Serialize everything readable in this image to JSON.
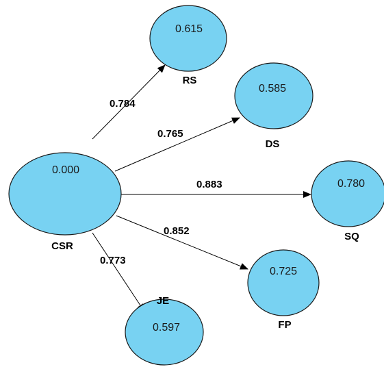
{
  "colors": {
    "node_fill": "#78d2f2",
    "node_stroke": "#1a1a1a",
    "edge": "#000000"
  },
  "nodes": {
    "csr": {
      "label": "CSR",
      "value": "0.000"
    },
    "rs": {
      "label": "RS",
      "value": "0.615"
    },
    "ds": {
      "label": "DS",
      "value": "0.585"
    },
    "sq": {
      "label": "SQ",
      "value": "0.780"
    },
    "fp": {
      "label": "FP",
      "value": "0.725"
    },
    "je": {
      "label": "JE",
      "value": "0.597"
    }
  },
  "edges": {
    "csr_rs": {
      "from": "CSR",
      "to": "RS",
      "label": "0.784"
    },
    "csr_ds": {
      "from": "CSR",
      "to": "DS",
      "label": "0.765"
    },
    "csr_sq": {
      "from": "CSR",
      "to": "SQ",
      "label": "0.883"
    },
    "csr_fp": {
      "from": "CSR",
      "to": "FP",
      "label": "0.852"
    },
    "csr_je": {
      "from": "CSR",
      "to": "JE",
      "label": "0.773"
    }
  }
}
